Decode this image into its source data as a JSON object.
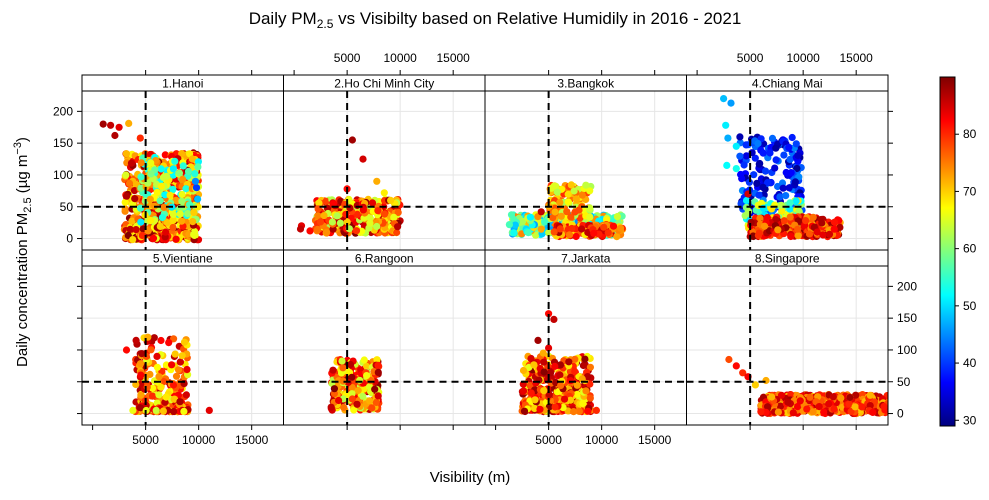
{
  "chart_data": {
    "type": "scatter",
    "title_main": "Daily PM",
    "title_sub": "2.5",
    "title_rest": " vs Visibilty based on Relative Humidily in 2016 - 2021",
    "xlabel": "Visibility (m)",
    "ylabel_main": "Daily concentration PM",
    "ylabel_sub": "2.5",
    "ylabel_unit": " (µg m",
    "ylabel_exp": "−3",
    "ylabel_close": ")",
    "xlim": [
      -1000,
      18000
    ],
    "ylim": [
      -18,
      232
    ],
    "x_ticks": [
      5000,
      10000,
      15000
    ],
    "x_tick_labels": [
      "5000",
      "10000",
      "15000"
    ],
    "y_ticks": [
      0,
      50,
      100,
      150,
      200
    ],
    "y_tick_labels": [
      "0",
      "50",
      "100",
      "150",
      "200"
    ],
    "reference_lines": {
      "x": 5000,
      "y": 50,
      "style": "dashed"
    },
    "grid": true,
    "colorbar": {
      "label": "Relative humidity",
      "min": 29,
      "max": 90,
      "ticks": [
        30,
        40,
        50,
        60,
        70,
        80
      ],
      "tick_labels": [
        "30",
        "40",
        "50",
        "60",
        "70",
        "80"
      ],
      "palette": [
        "#00007F",
        "#0000FF",
        "#007FFF",
        "#00FFFF",
        "#7FFF7F",
        "#FFFF00",
        "#FF7F00",
        "#FF0000",
        "#7F0000"
      ]
    },
    "panels": [
      {
        "label": "1.Hanoi",
        "clusters": [
          {
            "x": [
              3000,
              10000
            ],
            "y": [
              -2,
              135
            ],
            "rh": [
              65,
              90
            ],
            "n": 550,
            "skew": 1.4
          },
          {
            "x": [
              4500,
              10000
            ],
            "y": [
              25,
              130
            ],
            "rh": [
              50,
              75
            ],
            "n": 150,
            "skew": 1.0
          }
        ],
        "points": [
          {
            "x": 1000,
            "y": 180,
            "rh": 88
          },
          {
            "x": 1700,
            "y": 178,
            "rh": 86
          },
          {
            "x": 2500,
            "y": 175,
            "rh": 84
          },
          {
            "x": 3400,
            "y": 181,
            "rh": 72
          },
          {
            "x": 4500,
            "y": 158,
            "rh": 80
          },
          {
            "x": 2100,
            "y": 162,
            "rh": 87
          },
          {
            "x": 9800,
            "y": 80,
            "rh": 40
          },
          {
            "x": 9700,
            "y": 90,
            "rh": 45
          },
          {
            "x": 9900,
            "y": 62,
            "rh": 48
          },
          {
            "x": 9600,
            "y": 5,
            "rh": 66
          }
        ]
      },
      {
        "label": "2.Ho Chi Minh City",
        "clusters": [
          {
            "x": [
              2000,
              10000
            ],
            "y": [
              8,
              62
            ],
            "rh": [
              62,
              90
            ],
            "n": 330,
            "skew": 1.0
          }
        ],
        "points": [
          {
            "x": 5500,
            "y": 155,
            "rh": 88
          },
          {
            "x": 6500,
            "y": 125,
            "rh": 85
          },
          {
            "x": 7800,
            "y": 90,
            "rh": 72
          },
          {
            "x": 5000,
            "y": 78,
            "rh": 82
          },
          {
            "x": 700,
            "y": 20,
            "rh": 84
          },
          {
            "x": 600,
            "y": 15,
            "rh": 86
          },
          {
            "x": 1500,
            "y": 12,
            "rh": 82
          },
          {
            "x": 9100,
            "y": 60,
            "rh": 70
          },
          {
            "x": 8500,
            "y": 72,
            "rh": 68
          }
        ]
      },
      {
        "label": "3.Bangkok",
        "clusters": [
          {
            "x": [
              1500,
              12000
            ],
            "y": [
              5,
              38
            ],
            "rh": [
              45,
              75
            ],
            "n": 320,
            "skew": 1.2
          },
          {
            "x": [
              5500,
              12000
            ],
            "y": [
              3,
              22
            ],
            "rh": [
              68,
              88
            ],
            "n": 140,
            "skew": 1.0
          },
          {
            "x": [
              5000,
              9000
            ],
            "y": [
              30,
              85
            ],
            "rh": [
              62,
              80
            ],
            "n": 110,
            "skew": 1.0
          }
        ],
        "points": [
          {
            "x": 4300,
            "y": 42,
            "rh": 86
          },
          {
            "x": 1300,
            "y": 22,
            "rh": 56
          }
        ]
      },
      {
        "label": "4.Chiang Mai",
        "clusters": [
          {
            "x": [
              4000,
              10000
            ],
            "y": [
              40,
              160
            ],
            "rh": [
              30,
              45
            ],
            "n": 170,
            "skew": 1.0
          },
          {
            "x": [
              4500,
              10000
            ],
            "y": [
              15,
              60
            ],
            "rh": [
              50,
              70
            ],
            "n": 90,
            "skew": 1.0
          },
          {
            "x": [
              5000,
              13500
            ],
            "y": [
              3,
              35
            ],
            "rh": [
              72,
              90
            ],
            "n": 240,
            "skew": 1.3
          }
        ],
        "points": [
          {
            "x": 2500,
            "y": 220,
            "rh": 48
          },
          {
            "x": 3200,
            "y": 213,
            "rh": 46
          },
          {
            "x": 2700,
            "y": 178,
            "rh": 51
          },
          {
            "x": 2900,
            "y": 158,
            "rh": 47
          },
          {
            "x": 2800,
            "y": 115,
            "rh": 52
          },
          {
            "x": 3700,
            "y": 110,
            "rh": 53
          },
          {
            "x": 4800,
            "y": 70,
            "rh": 85
          },
          {
            "x": 3700,
            "y": 145,
            "rh": 51
          }
        ]
      },
      {
        "label": "5.Vientiane",
        "clusters": [
          {
            "x": [
              4000,
              9000
            ],
            "y": [
              3,
              120
            ],
            "rh": [
              65,
              88
            ],
            "n": 260,
            "skew": 2.2
          }
        ],
        "points": [
          {
            "x": 3200,
            "y": 100,
            "rh": 82
          },
          {
            "x": 4100,
            "y": 115,
            "rh": 86
          },
          {
            "x": 5200,
            "y": 120,
            "rh": 72
          },
          {
            "x": 11000,
            "y": 5,
            "rh": 84
          },
          {
            "x": 3800,
            "y": 5,
            "rh": 66
          },
          {
            "x": 6000,
            "y": 5,
            "rh": 64
          }
        ]
      },
      {
        "label": "6.Rangoon",
        "clusters": [
          {
            "x": [
              3500,
              8000
            ],
            "y": [
              5,
              85
            ],
            "rh": [
              62,
              90
            ],
            "n": 260,
            "skew": 1.0
          }
        ],
        "points": [
          {
            "x": 3500,
            "y": 10,
            "rh": 86
          }
        ]
      },
      {
        "label": "7.Jarkata",
        "clusters": [
          {
            "x": [
              2500,
              9000
            ],
            "y": [
              3,
              90
            ],
            "rh": [
              65,
              90
            ],
            "n": 400,
            "skew": 1.5
          }
        ],
        "points": [
          {
            "x": 5000,
            "y": 157,
            "rh": 82
          },
          {
            "x": 5500,
            "y": 148,
            "rh": 86
          },
          {
            "x": 4000,
            "y": 115,
            "rh": 88
          },
          {
            "x": 5000,
            "y": 103,
            "rh": 84
          },
          {
            "x": 4500,
            "y": 95,
            "rh": 72
          },
          {
            "x": 9500,
            "y": 5,
            "rh": 80
          }
        ]
      },
      {
        "label": "8.Singapore",
        "clusters": [
          {
            "x": [
              6000,
              18000
            ],
            "y": [
              0,
              30
            ],
            "rh": [
              70,
              88
            ],
            "n": 520,
            "skew": 1.0
          }
        ],
        "points": [
          {
            "x": 3000,
            "y": 85,
            "rh": 78
          },
          {
            "x": 3700,
            "y": 75,
            "rh": 82
          },
          {
            "x": 4300,
            "y": 64,
            "rh": 80
          },
          {
            "x": 4800,
            "y": 58,
            "rh": 83
          },
          {
            "x": 5500,
            "y": 45,
            "rh": 70
          },
          {
            "x": 6500,
            "y": 52,
            "rh": 72
          }
        ]
      }
    ]
  }
}
